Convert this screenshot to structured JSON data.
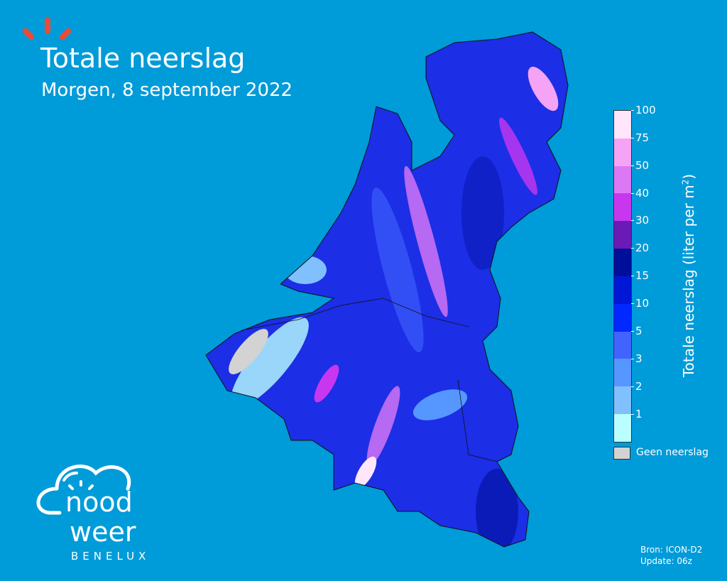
{
  "header": {
    "title": "Totale neerslag",
    "subtitle": "Morgen, 8 september 2022"
  },
  "legend": {
    "label": "Totale neerslag (liter per m²)",
    "label_main": "Totale neerslag (liter per m",
    "label_sup": "2",
    "label_end": ")",
    "ticks": [
      "100",
      "75",
      "50",
      "40",
      "30",
      "20",
      "15",
      "10",
      "5",
      "3",
      "2",
      "1"
    ],
    "colors": [
      "#ffe6fa",
      "#f5a3f5",
      "#dd78f5",
      "#c837f0",
      "#6a1ab5",
      "#000f9a",
      "#0018d6",
      "#0028ff",
      "#4164ff",
      "#5597ff",
      "#80c0ff",
      "#baffff"
    ],
    "no_data_label": "Geen neerslag",
    "no_data_color": "#d3d3d3"
  },
  "footer": {
    "source": "Bron: ICON-D2",
    "update": "Update: 06z"
  },
  "logo": {
    "line1": "nood",
    "line2": "weer",
    "line3": "BENELUX"
  },
  "colors": {
    "background": "#009bd9",
    "accent": "#e84c36"
  }
}
